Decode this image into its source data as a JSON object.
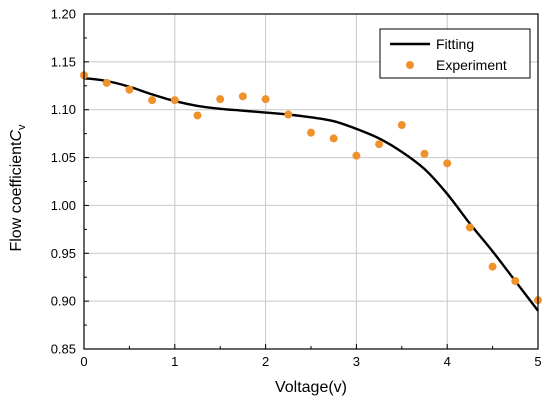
{
  "chart_data": {
    "type": "scatter",
    "xlabel": "Voltage(v)",
    "ylabel": {
      "text": "Flow coefficient",
      "symbol": "C",
      "subscript": "v"
    },
    "xlim": [
      0,
      5
    ],
    "ylim": [
      0.85,
      1.2
    ],
    "x_ticks": [
      "0",
      "1",
      "2",
      "3",
      "4",
      "5"
    ],
    "y_ticks": [
      "0.85",
      "0.90",
      "0.95",
      "1.00",
      "1.05",
      "1.10",
      "1.15",
      "1.20"
    ],
    "grid": true,
    "legend_position": "top-right",
    "series": [
      {
        "name": "Fitting",
        "kind": "line",
        "color": "#000000",
        "x": [
          0,
          0.25,
          0.5,
          0.75,
          1.0,
          1.25,
          1.5,
          1.75,
          2.0,
          2.25,
          2.5,
          2.75,
          3.0,
          3.25,
          3.5,
          3.75,
          4.0,
          4.25,
          4.5,
          4.75,
          5.0
        ],
        "y": [
          1.133,
          1.13,
          1.124,
          1.116,
          1.109,
          1.104,
          1.101,
          1.099,
          1.097,
          1.095,
          1.092,
          1.088,
          1.08,
          1.07,
          1.056,
          1.038,
          1.012,
          0.981,
          0.952,
          0.921,
          0.89
        ]
      },
      {
        "name": "Experiment",
        "kind": "scatter",
        "color": "#f0922b",
        "x": [
          0,
          0.25,
          0.5,
          0.75,
          1.0,
          1.25,
          1.5,
          1.75,
          2.0,
          2.25,
          2.5,
          2.75,
          3.0,
          3.25,
          3.5,
          3.75,
          4.0,
          4.25,
          4.5,
          4.75,
          5.0
        ],
        "y": [
          1.136,
          1.128,
          1.121,
          1.11,
          1.11,
          1.094,
          1.111,
          1.114,
          1.111,
          1.095,
          1.076,
          1.07,
          1.052,
          1.064,
          1.084,
          1.054,
          1.044,
          0.977,
          0.936,
          0.921,
          0.901
        ]
      }
    ]
  }
}
